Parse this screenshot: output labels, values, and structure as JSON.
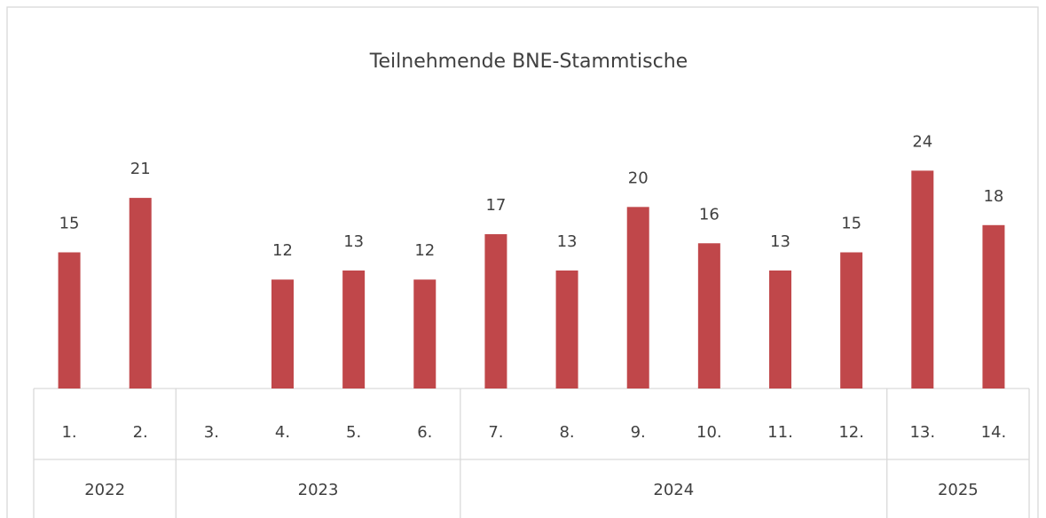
{
  "chart_data": {
    "type": "bar",
    "title": "Teilnehmende BNE-Stammtische",
    "groups": [
      {
        "label": "2022",
        "categories": [
          "1.",
          "2."
        ]
      },
      {
        "label": "2023",
        "categories": [
          "3.",
          "4.",
          "5.",
          "6."
        ]
      },
      {
        "label": "2024",
        "categories": [
          "7.",
          "8.",
          "9.",
          "10.",
          "11.",
          "12."
        ]
      },
      {
        "label": "2025",
        "categories": [
          "13.",
          "14."
        ]
      }
    ],
    "values": [
      15,
      21,
      null,
      12,
      13,
      12,
      17,
      13,
      20,
      16,
      13,
      15,
      24,
      18
    ],
    "color": "#c0474a",
    "ylim": [
      0,
      30
    ]
  }
}
